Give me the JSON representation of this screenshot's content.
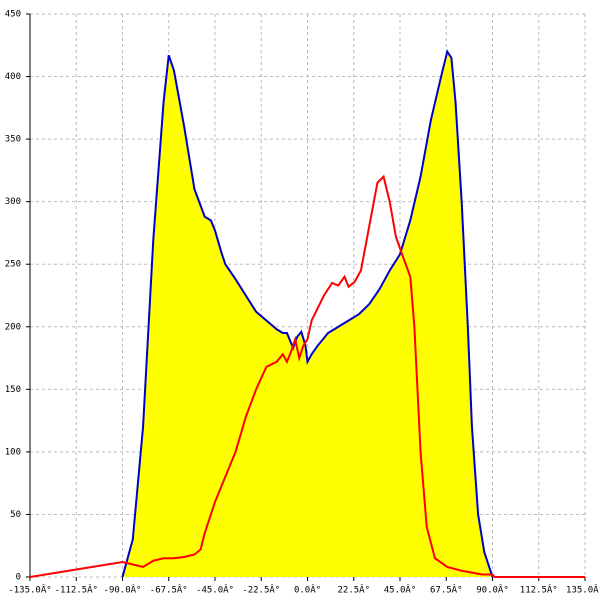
{
  "chart_data": {
    "type": "area",
    "grid": true,
    "xlim": [
      -135,
      135
    ],
    "ylim": [
      0,
      450
    ],
    "xticks": [
      {
        "value": -135,
        "label": "-135.0Â°"
      },
      {
        "value": -112.5,
        "label": "-112.5Â°"
      },
      {
        "value": -90,
        "label": "-90.0Â°"
      },
      {
        "value": -67.5,
        "label": "-67.5Â°"
      },
      {
        "value": -45,
        "label": "-45.0Â°"
      },
      {
        "value": -22.5,
        "label": "-22.5Â°"
      },
      {
        "value": 0,
        "label": "0.0Â°"
      },
      {
        "value": 22.5,
        "label": "22.5Â°"
      },
      {
        "value": 45,
        "label": "45.0Â°"
      },
      {
        "value": 67.5,
        "label": "67.5Â°"
      },
      {
        "value": 90,
        "label": "90.0Â°"
      },
      {
        "value": 112.5,
        "label": "112.5Â°"
      },
      {
        "value": 135,
        "label": "135.0Â°"
      }
    ],
    "yticks": [
      0,
      50,
      100,
      150,
      200,
      250,
      300,
      350,
      400,
      450
    ],
    "series": [
      {
        "color": "#0000cc",
        "fill": "#ffff00",
        "x": [
          -90,
          -85,
          -80,
          -75,
          -70,
          -67.5,
          -65,
          -60,
          -55,
          -50,
          -47,
          -45,
          -42,
          -40,
          -35,
          -30,
          -25,
          -20,
          -15,
          -12,
          -10,
          -8,
          -7,
          -5,
          -3,
          -1,
          0,
          2,
          5,
          10,
          15,
          20,
          25,
          30,
          35,
          40,
          45,
          50,
          55,
          60,
          65,
          68,
          70,
          72,
          75,
          78,
          80,
          83,
          86,
          90
        ],
        "values": [
          0,
          30,
          120,
          270,
          380,
          417,
          405,
          360,
          310,
          288,
          285,
          277,
          260,
          250,
          238,
          225,
          212,
          205,
          198,
          195,
          195,
          187,
          183,
          192,
          196,
          185,
          172,
          178,
          185,
          195,
          200,
          205,
          210,
          218,
          230,
          245,
          258,
          285,
          320,
          365,
          400,
          420,
          415,
          380,
          300,
          200,
          120,
          50,
          20,
          0
        ]
      },
      {
        "color": "#ff0000",
        "x": [
          -135,
          -90,
          -85,
          -80,
          -75,
          -70,
          -65,
          -60,
          -55,
          -52,
          -50,
          -45,
          -40,
          -35,
          -30,
          -25,
          -20,
          -15,
          -12,
          -10,
          -8,
          -6,
          -4,
          -2,
          0,
          2,
          5,
          8,
          12,
          15,
          18,
          20,
          23,
          26,
          30,
          34,
          37,
          40,
          43,
          46,
          50,
          52,
          55,
          58,
          62,
          68,
          75,
          85,
          90,
          91,
          135
        ],
        "values": [
          0,
          12,
          10,
          8,
          13,
          15,
          15,
          16,
          18,
          22,
          35,
          60,
          80,
          100,
          128,
          150,
          168,
          172,
          178,
          172,
          180,
          190,
          175,
          185,
          190,
          205,
          215,
          225,
          235,
          233,
          240,
          232,
          236,
          245,
          280,
          315,
          320,
          300,
          272,
          258,
          240,
          200,
          100,
          40,
          15,
          8,
          5,
          2,
          2,
          0,
          0
        ]
      }
    ]
  }
}
